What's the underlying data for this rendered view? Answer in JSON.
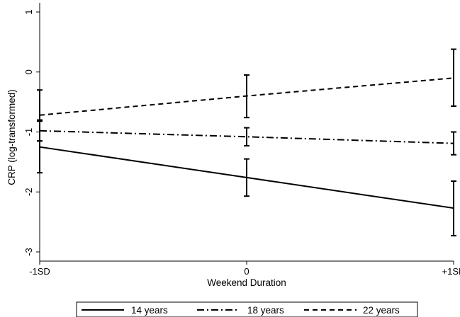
{
  "chart_data": {
    "type": "line",
    "title": "",
    "xlabel": "Weekend Duration",
    "ylabel": "CRP (log-transformed)",
    "categories": [
      "-1SD",
      "0",
      "+1SD"
    ],
    "ylim": [
      -3,
      1
    ],
    "yticks": [
      "-3",
      "-2",
      "-1",
      "0",
      "1"
    ],
    "grid": false,
    "legend_position": "bottom",
    "error_bars": true,
    "series": [
      {
        "name": "14 years",
        "dash": "solid",
        "values": [
          -1.25,
          -1.76,
          -2.27
        ],
        "ci_low": [
          -1.68,
          -2.07,
          -2.73
        ],
        "ci_high": [
          -0.82,
          -1.45,
          -1.82
        ]
      },
      {
        "name": "18 years",
        "dash": "dashdot",
        "values": [
          -0.98,
          -1.08,
          -1.19
        ],
        "ci_low": [
          -1.15,
          -1.23,
          -1.38
        ],
        "ci_high": [
          -0.8,
          -0.93,
          -1.0
        ]
      },
      {
        "name": "22 years",
        "dash": "dashed",
        "values": [
          -0.72,
          -0.4,
          -0.1
        ],
        "ci_low": [
          -1.15,
          -0.76,
          -0.57
        ],
        "ci_high": [
          -0.3,
          -0.05,
          0.38
        ]
      }
    ]
  }
}
